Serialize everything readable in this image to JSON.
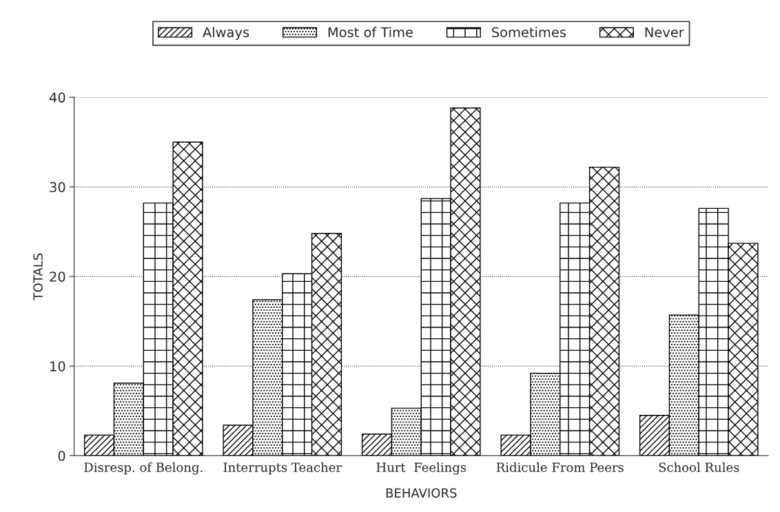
{
  "chart_data": {
    "type": "bar",
    "xlabel": "BEHAVIORS",
    "ylabel": "TOTALS",
    "categories": [
      "Disresp. of Belong.",
      "Interrupts Teacher",
      "Hurt  Feelings",
      "Ridicule From Peers",
      "School Rules"
    ],
    "series": [
      {
        "name": "Always",
        "color": "#000000",
        "values": [
          2.3,
          3.4,
          2.4,
          2.3,
          4.5
        ]
      },
      {
        "name": "Most of Time",
        "color": "#000000",
        "values": [
          8.1,
          17.4,
          5.3,
          9.2,
          15.7
        ]
      },
      {
        "name": "Sometimes",
        "color": "#000000",
        "values": [
          28.2,
          20.3,
          28.7,
          28.2,
          27.6
        ]
      },
      {
        "name": "Never",
        "color": "#000000",
        "values": [
          35.0,
          24.8,
          38.8,
          32.2,
          23.7
        ]
      }
    ],
    "ylim": [
      0,
      40
    ],
    "yticks": [
      0,
      10,
      20,
      30,
      40
    ],
    "grid": "y",
    "legend": "top"
  }
}
